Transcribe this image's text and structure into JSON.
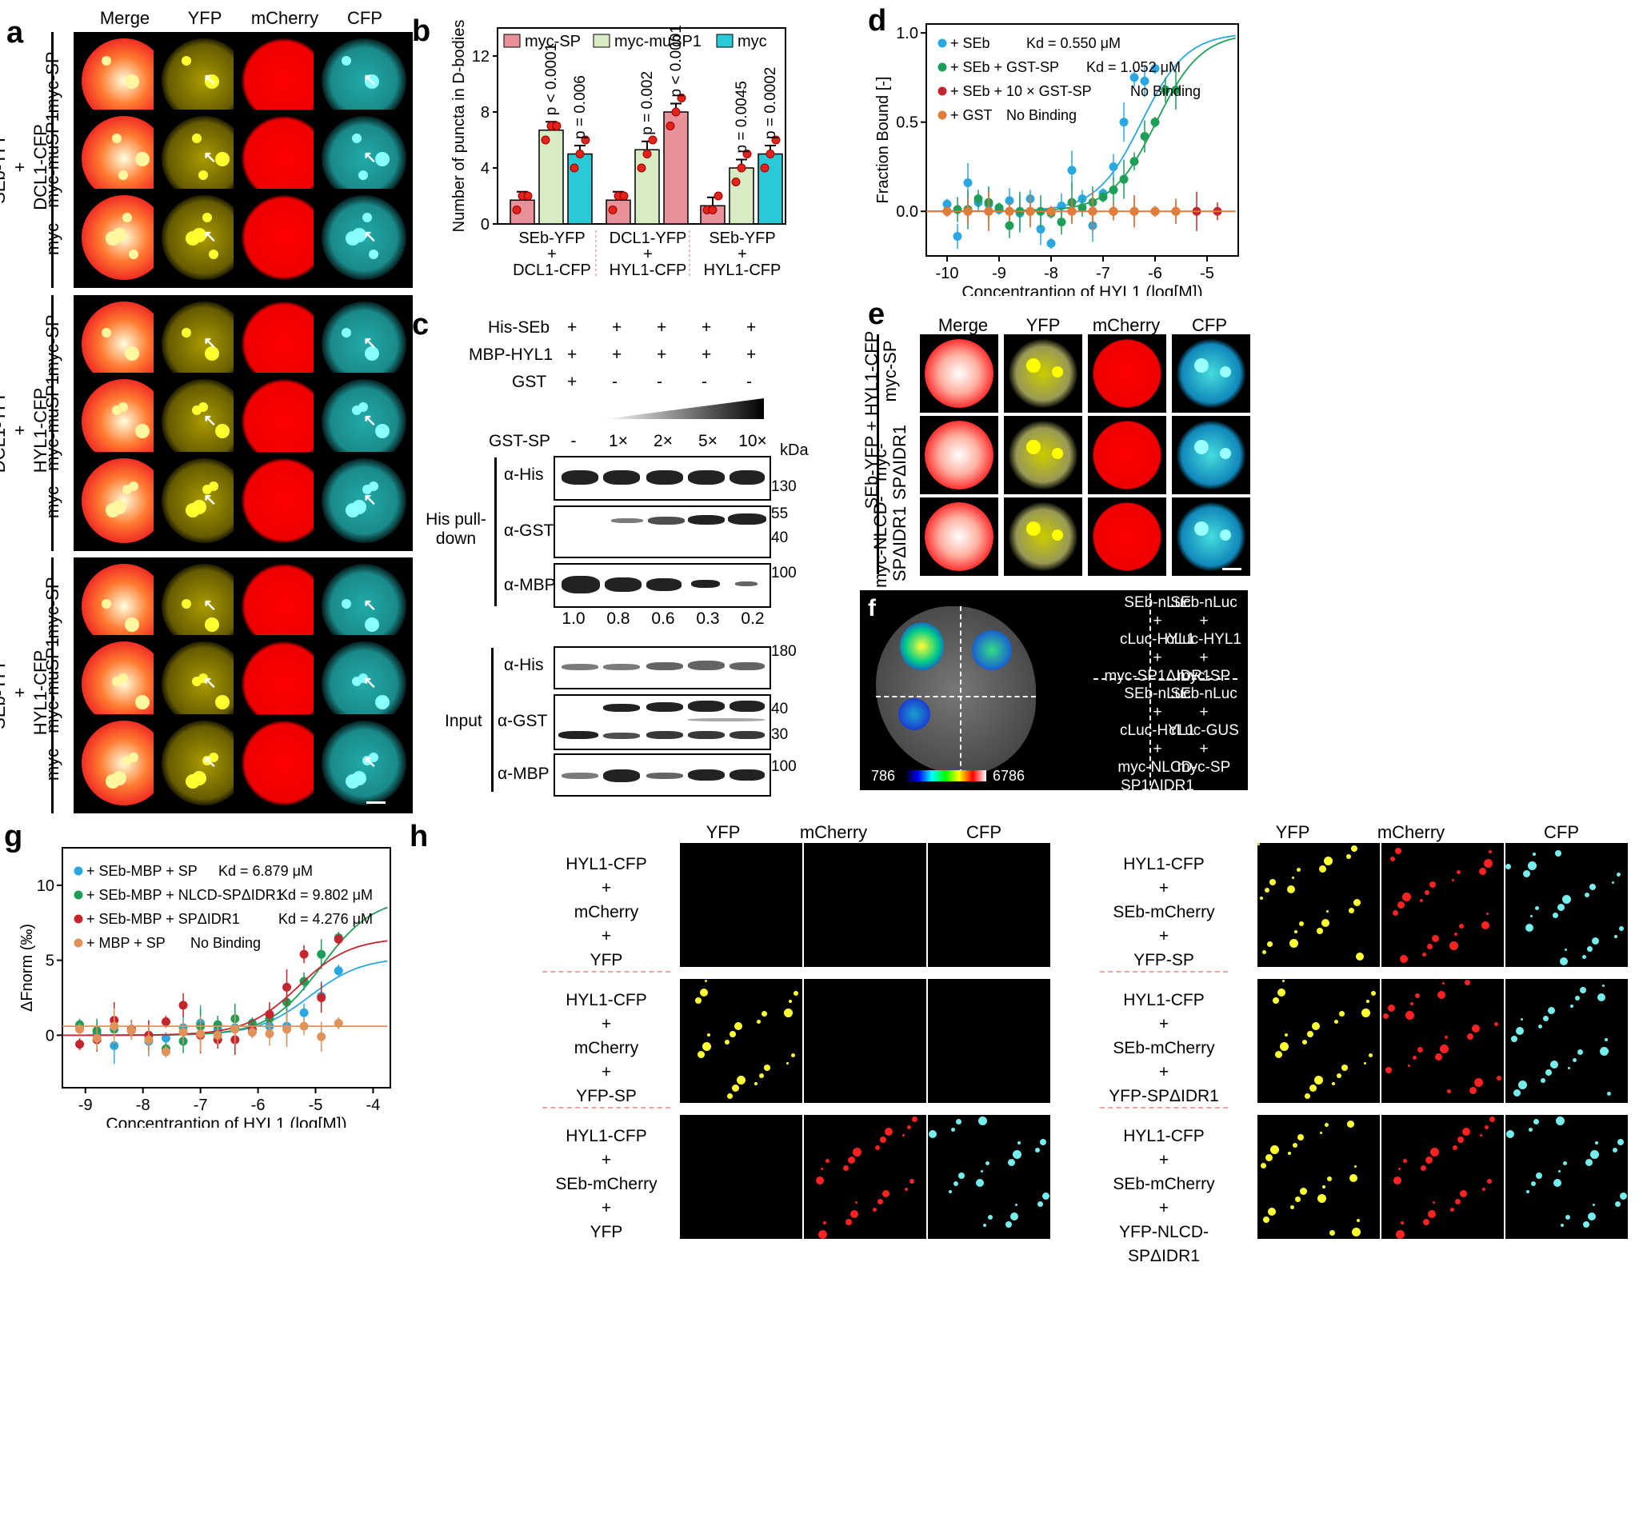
{
  "panels": {
    "a": "a",
    "b": "b",
    "c": "c",
    "d": "d",
    "e": "e",
    "f": "f",
    "g": "g",
    "h": "h"
  },
  "panel_a": {
    "columns": [
      "Merge",
      "YFP",
      "mCherry",
      "CFP"
    ],
    "groups": [
      {
        "label1": "SEb-YFP",
        "label2": "+",
        "label3": "DCL1-CFP",
        "rows": [
          "myc-SP",
          "myc-muSP1",
          "myc"
        ]
      },
      {
        "label1": "DCL1-YFP",
        "label2": "+",
        "label3": "HYL1-CFP",
        "rows": [
          "myc-SP",
          "myc-muSP1",
          "myc"
        ]
      },
      {
        "label1": "SEb-YFP",
        "label2": "+",
        "label3": "HYL1-CFP",
        "rows": [
          "myc-SP",
          "myc-muSP1",
          "myc"
        ]
      }
    ]
  },
  "chart_data": [
    {
      "panel": "b",
      "type": "bar",
      "ylabel": "Number of puncta in D-bodies",
      "ylim": [
        0,
        14
      ],
      "yticks": [
        "0",
        "4",
        "8",
        "12"
      ],
      "legend": [
        "myc-SP",
        "myc-muSP1",
        "myc"
      ],
      "colors": [
        "#e7919a",
        "#d8ecc4",
        "#29c9d6"
      ],
      "groups": [
        {
          "label": [
            "SEb-YFP",
            "+",
            "DCL1-CFP"
          ],
          "values": [
            1.7,
            6.7,
            5.0
          ],
          "pvalues": [
            "",
            "p < 0.0001",
            "p = 0.006"
          ],
          "dots": [
            [
              1,
              2,
              2
            ],
            [
              6,
              7,
              7
            ],
            [
              4,
              5,
              6
            ]
          ]
        },
        {
          "label": [
            "DCL1-YFP",
            "+",
            "HYL1-CFP"
          ],
          "values": [
            1.7,
            5.3,
            8.0
          ],
          "pvalues": [
            "",
            "p = 0.002",
            "p < 0.0001"
          ],
          "dots": [
            [
              1,
              2,
              2
            ],
            [
              4,
              5,
              6
            ],
            [
              7,
              8,
              9
            ]
          ],
          "order": [
            0,
            2,
            1
          ]
        },
        {
          "label": [
            "SEb-YFP",
            "+",
            "HYL1-CFP"
          ],
          "values": [
            1.3,
            4.0,
            5.0
          ],
          "pvalues": [
            "",
            "p = 0.0045",
            "p = 0.0002"
          ],
          "dots": [
            [
              1,
              1,
              2
            ],
            [
              3,
              4,
              5
            ],
            [
              4,
              5,
              6
            ]
          ]
        }
      ]
    },
    {
      "panel": "d",
      "type": "scatter",
      "xlabel": "Concentrantion of HYL1 (log[M])",
      "ylabel": "Fraction Bound [-]",
      "xlim": [
        -10.4,
        -4.4
      ],
      "ylim": [
        -0.25,
        1.05
      ],
      "xticks": [
        "-10",
        "-9",
        "-8",
        "-7",
        "-6",
        "-5"
      ],
      "yticks": [
        "0.0",
        "0.5",
        "1.0"
      ],
      "series": [
        {
          "name": "+ SEb",
          "kd_label": "Kd = 0.550 μM",
          "color": "#2aa6e0",
          "x": [
            -10,
            -9.8,
            -9.6,
            -9.4,
            -9.2,
            -9.0,
            -8.8,
            -8.6,
            -8.4,
            -8.2,
            -8.0,
            -7.8,
            -7.6,
            -7.4,
            -7.2,
            -7.0,
            -6.8,
            -6.6,
            -6.4,
            -6.2,
            -6.0
          ],
          "y": [
            0.04,
            -0.14,
            0.16,
            0.05,
            0.04,
            0.01,
            0.06,
            -0.01,
            0.07,
            -0.1,
            -0.18,
            0.03,
            0.23,
            0.07,
            -0.08,
            0.1,
            0.25,
            0.5,
            0.75,
            0.73,
            0.8
          ],
          "kd": 0.55
        },
        {
          "name": "+ SEb + GST-SP",
          "kd_label": "Kd = 1.052 μM",
          "color": "#1e9e58",
          "x": [
            -10,
            -9.8,
            -9.6,
            -9.4,
            -9.2,
            -9.0,
            -8.8,
            -8.6,
            -8.4,
            -8.2,
            -8.0,
            -7.8,
            -7.6,
            -7.4,
            -7.2,
            -7.0,
            -6.8,
            -6.6,
            -6.4,
            -6.2,
            -6.0,
            -5.8,
            -5.6
          ],
          "y": [
            0.0,
            0.01,
            0.01,
            0.07,
            0.05,
            0.02,
            -0.08,
            0.0,
            0.0,
            0.0,
            -0.01,
            -0.06,
            0.05,
            0.02,
            0.05,
            0.08,
            0.12,
            0.18,
            0.28,
            0.42,
            0.5,
            0.68,
            0.68
          ],
          "kd": 1.052
        },
        {
          "name": "+ SEb + 10 × GST-SP",
          "kd_label": "No Binding",
          "color": "#c4262e",
          "x": [
            -10,
            -9.6,
            -9.2,
            -8.8,
            -8.4,
            -8.0,
            -7.6,
            -7.2,
            -6.8,
            -6.4,
            -6.0,
            -5.6,
            -5.2,
            -4.8
          ],
          "y": [
            0,
            0,
            0,
            0,
            0,
            0,
            0,
            0,
            0,
            0,
            0,
            0,
            0,
            0
          ]
        },
        {
          "name": "+ GST",
          "kd_label": "No Binding",
          "color": "#e07d3a",
          "x": [
            -10,
            -9.6,
            -9.2,
            -8.8,
            -8.4,
            -8.0,
            -7.6,
            -7.2,
            -6.8,
            -6.4,
            -6.0,
            -5.6
          ],
          "y": [
            0,
            0,
            0,
            0,
            0,
            0,
            0,
            0,
            0,
            0,
            0,
            0
          ]
        }
      ]
    },
    {
      "panel": "g",
      "type": "scatter",
      "xlabel": "Concentrantion of HYL1 (log[M])",
      "ylabel": "ΔFnorm (‰)",
      "xlim": [
        -9.4,
        -3.7
      ],
      "ylim": [
        -3.5,
        12.5
      ],
      "xticks": [
        "-9",
        "-8",
        "-7",
        "-6",
        "-5",
        "-4"
      ],
      "yticks": [
        "0",
        "5",
        "10"
      ],
      "series": [
        {
          "name": "+ SEb-MBP + SP",
          "kd_label": "Kd = 6.879 μM",
          "color": "#2aa6e0",
          "x": [
            -9.1,
            -8.8,
            -8.5,
            -8.2,
            -7.9,
            -7.6,
            -7.3,
            -7.0,
            -6.7,
            -6.4,
            -6.1,
            -5.8,
            -5.5,
            -5.2,
            -4.9,
            -4.6
          ],
          "y": [
            0.5,
            0.1,
            -0.7,
            0.4,
            -0.4,
            -0.2,
            0.5,
            0.8,
            0.4,
            0.5,
            0.2,
            0.6,
            0.6,
            1.5,
            2.6,
            4.3
          ]
        },
        {
          "name": "+ SEb-MBP + NLCD-SPΔIDR1",
          "kd_label": "Kd = 9.802 μM",
          "color": "#1e9e58",
          "x": [
            -9.1,
            -8.8,
            -8.5,
            -8.2,
            -7.9,
            -7.6,
            -7.3,
            -7.0,
            -6.7,
            -6.4,
            -6.1,
            -5.8,
            -5.5,
            -5.2,
            -4.9,
            -4.6
          ],
          "y": [
            0.7,
            0.3,
            0.4,
            0.3,
            0.0,
            -0.9,
            -0.4,
            0.6,
            0.7,
            1.1,
            0.8,
            1.1,
            2.2,
            3.6,
            5.4,
            6.5
          ]
        },
        {
          "name": "+ SEb-MBP + SPΔIDR1",
          "kd_label": "Kd = 4.276 μM",
          "color": "#c4262e",
          "x": [
            -9.1,
            -8.8,
            -8.5,
            -8.2,
            -7.9,
            -7.6,
            -7.3,
            -7.0,
            -6.7,
            -6.4,
            -6.1,
            -5.8,
            -5.5,
            -5.2,
            -4.9,
            -4.6
          ],
          "y": [
            -0.6,
            -0.3,
            1.0,
            0.4,
            0.0,
            0.9,
            2.0,
            0.0,
            -0.3,
            -0.3,
            0.4,
            1.4,
            3.2,
            5.4,
            2.5,
            6.4
          ]
        },
        {
          "name": "+ MBP + SP",
          "kd_label": "No Binding",
          "color": "#e0925a",
          "x": [
            -9.1,
            -8.8,
            -8.5,
            -8.2,
            -7.9,
            -7.6,
            -7.3,
            -7.0,
            -6.7,
            -6.4,
            -6.1,
            -5.8,
            -5.5,
            -5.2,
            -4.9,
            -4.6
          ],
          "y": [
            0.4,
            -0.2,
            0.6,
            0.3,
            -0.3,
            -1.1,
            0.2,
            0.1,
            0.0,
            0.4,
            0.2,
            0.1,
            0.4,
            0.6,
            -0.1,
            0.8
          ]
        }
      ]
    }
  ],
  "panel_c": {
    "rows": [
      {
        "name": "His-SEb",
        "vals": [
          "+",
          "+",
          "+",
          "+",
          "+"
        ]
      },
      {
        "name": "MBP-HYL1",
        "vals": [
          "+",
          "+",
          "+",
          "+",
          "+"
        ]
      },
      {
        "name": "GST",
        "vals": [
          "+",
          "-",
          "-",
          "-",
          "-"
        ]
      }
    ],
    "gst_sp": {
      "name": "GST-SP",
      "vals": [
        "-",
        "1×",
        "2×",
        "5×",
        "10×"
      ]
    },
    "kda": "kDa",
    "pulldown_label": "His pull-down",
    "input_label": "Input",
    "blots": [
      {
        "ab": "α-His",
        "markers": [
          "130"
        ]
      },
      {
        "ab": "α-GST",
        "markers": [
          "55",
          "40"
        ]
      },
      {
        "ab": "α-MBP",
        "markers": [
          "100"
        ]
      },
      {
        "ab": "α-His",
        "markers": [
          "180"
        ]
      },
      {
        "ab": "α-GST",
        "markers": [
          "40",
          "30"
        ]
      },
      {
        "ab": "α-MBP",
        "markers": [
          "100"
        ]
      }
    ],
    "ratios": [
      "1.0",
      "0.8",
      "0.6",
      "0.3",
      "0.2"
    ]
  },
  "panel_e": {
    "columns": [
      "Merge",
      "YFP",
      "mCherry",
      "CFP"
    ],
    "group_label": "SEb-YFP + HYL1-CFP",
    "rows": [
      [
        "myc-SP",
        ""
      ],
      [
        "myc-",
        "SPΔIDR1"
      ],
      [
        "myc-NLCD-",
        "SPΔIDR1"
      ]
    ]
  },
  "panel_f": {
    "scale_min": "786",
    "scale_max": "6786",
    "cells": [
      [
        "SEb-nLuc",
        "+",
        "cLuc-HYL1",
        "+",
        "myc-SP1ΔIDR1"
      ],
      [
        "SEb-nLuc",
        "+",
        "cLuc-HYL1",
        "+",
        "myc-SP"
      ],
      [
        "SEb-nLuc",
        "+",
        "cLuc-HYL1",
        "+",
        "myc-NLCD-",
        "SP1ΔIDR1"
      ],
      [
        "SEb-nLuc",
        "+",
        "cLuc-GUS",
        "+",
        "myc-SP"
      ]
    ]
  },
  "panel_h": {
    "columns": [
      "YFP",
      "mCherry",
      "CFP"
    ],
    "left_rows": [
      [
        "HYL1-CFP",
        "+",
        "mCherry",
        "+",
        "YFP"
      ],
      [
        "HYL1-CFP",
        "+",
        "mCherry",
        "+",
        "YFP-SP"
      ],
      [
        "HYL1-CFP",
        "+",
        "SEb-mCherry",
        "+",
        "YFP"
      ]
    ],
    "right_rows": [
      [
        "HYL1-CFP",
        "+",
        "SEb-mCherry",
        "+",
        "YFP-SP"
      ],
      [
        "HYL1-CFP",
        "+",
        "SEb-mCherry",
        "+",
        "YFP-SPΔIDR1"
      ],
      [
        "HYL1-CFP",
        "+",
        "SEb-mCherry",
        "+",
        "YFP-NLCD-SPΔIDR1"
      ]
    ]
  }
}
